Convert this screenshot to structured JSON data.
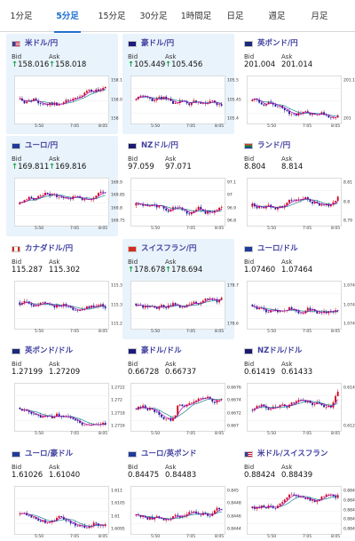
{
  "timeframe_tabs": [
    {
      "label": "1分足",
      "active": false
    },
    {
      "label": "5分足",
      "active": true
    },
    {
      "label": "15分足",
      "active": false
    },
    {
      "label": "30分足",
      "active": false
    },
    {
      "label": "1時間足",
      "active": false
    },
    {
      "label": "日足",
      "active": false
    },
    {
      "label": "週足",
      "active": false
    },
    {
      "label": "月足",
      "active": false
    }
  ],
  "colors": {
    "accent": "#1f6fd1",
    "title": "#3f3fa0",
    "up_arrow": "#1aa34a",
    "candle_up": "#d0021b",
    "candle_down": "#1a1a9a",
    "avg_line_fast": "#b000b0",
    "avg_line_slow": "#1a8a8a",
    "highlight_bg": "#e9f3fb"
  },
  "labels": {
    "bid": "Bid",
    "ask": "Ask"
  },
  "cards": [
    {
      "pair": "米ドル/円",
      "flag": "us-flag-icon",
      "bid": "158.016",
      "ask": "158.018",
      "arrow": "up",
      "highlight": true,
      "y_ticks": [
        "158.1",
        "158.05",
        "158"
      ],
      "x_ticks": [
        "5:50",
        "7:05",
        "8:05"
      ]
    },
    {
      "pair": "豪ドル/円",
      "flag": "au-flag-icon",
      "bid": "105.449",
      "ask": "105.456",
      "arrow": "up",
      "highlight": true,
      "y_ticks": [
        "105.5",
        "105.45",
        "105.4"
      ],
      "x_ticks": [
        "5:50",
        "7:05",
        "8:05"
      ]
    },
    {
      "pair": "英ポンド/円",
      "flag": "gb-flag-icon",
      "bid": "201.004",
      "ask": "201.014",
      "arrow": "none",
      "highlight": false,
      "y_ticks": [
        "201.1",
        "201"
      ],
      "x_ticks": [
        "5:50",
        "7:05",
        "8:05"
      ]
    },
    {
      "pair": "ユーロ/円",
      "flag": "eu-flag-icon",
      "bid": "169.811",
      "ask": "169.816",
      "arrow": "up",
      "highlight": true,
      "y_ticks": [
        "169.9",
        "169.85",
        "169.8",
        "169.75"
      ],
      "x_ticks": [
        "5:50",
        "7:05",
        "8:05"
      ]
    },
    {
      "pair": "NZドル/円",
      "flag": "nz-flag-icon",
      "bid": "97.059",
      "ask": "97.071",
      "arrow": "none",
      "highlight": false,
      "y_ticks": [
        "97.1",
        "97",
        "96.9",
        "96.8"
      ],
      "x_ticks": [
        "5:50",
        "7:05",
        "8:05"
      ]
    },
    {
      "pair": "ランド/円",
      "flag": "za-flag-icon",
      "bid": "8.804",
      "ask": "8.814",
      "arrow": "none",
      "highlight": false,
      "y_ticks": [
        "8.81",
        "8.8",
        "8.79"
      ],
      "x_ticks": [
        "5:50",
        "7:05",
        "8:05"
      ]
    },
    {
      "pair": "カナダドル/円",
      "flag": "ca-flag-icon",
      "bid": "115.287",
      "ask": "115.302",
      "arrow": "none",
      "highlight": false,
      "y_ticks": [
        "115.35",
        "115.3",
        "115.25"
      ],
      "x_ticks": [
        "5:50",
        "7:05",
        "8:05"
      ]
    },
    {
      "pair": "スイスフラン/円",
      "flag": "ch-flag-icon",
      "bid": "178.678",
      "ask": "178.694",
      "arrow": "up",
      "highlight": true,
      "y_ticks": [
        "178.7",
        "178.6"
      ],
      "x_ticks": [
        "5:50",
        "7:05",
        "8:05"
      ]
    },
    {
      "pair": "ユーロ/ドル",
      "flag": "eu-us-flag-icon",
      "bid": "1.07460",
      "ask": "1.07464",
      "arrow": "none",
      "highlight": false,
      "y_ticks": [
        "1.0748",
        "1.0746",
        "1.0744"
      ],
      "x_ticks": [
        "5:50",
        "7:05",
        "8:05"
      ]
    },
    {
      "pair": "英ポンド/ドル",
      "flag": "gb-us-flag-icon",
      "bid": "1.27199",
      "ask": "1.27209",
      "arrow": "none",
      "highlight": false,
      "y_ticks": [
        "1.2722",
        "1.272",
        "1.2718",
        "1.2716"
      ],
      "x_ticks": [
        "5:50",
        "7:05",
        "8:05"
      ]
    },
    {
      "pair": "豪ドル/ドル",
      "flag": "au-us-flag-icon",
      "bid": "0.66728",
      "ask": "0.66737",
      "arrow": "none",
      "highlight": false,
      "y_ticks": [
        "0.6676",
        "0.6674",
        "0.6672",
        "0.667"
      ],
      "x_ticks": [
        "5:50",
        "7:05",
        "8:05"
      ]
    },
    {
      "pair": "NZドル/ドル",
      "flag": "nz-us-flag-icon",
      "bid": "0.61419",
      "ask": "0.61433",
      "arrow": "none",
      "highlight": false,
      "y_ticks": [
        "0.614",
        "0.612"
      ],
      "x_ticks": [
        "5:50",
        "7:05",
        "8:05"
      ]
    },
    {
      "pair": "ユーロ/豪ドル",
      "flag": "eu-au-flag-icon",
      "bid": "1.61026",
      "ask": "1.61040",
      "arrow": "none",
      "highlight": false,
      "y_ticks": [
        "1.611",
        "1.6105",
        "1.61",
        "1.6095"
      ],
      "x_ticks": [
        "5:50",
        "7:05",
        "8:05"
      ]
    },
    {
      "pair": "ユーロ/英ポンド",
      "flag": "eu-gb-flag-icon",
      "bid": "0.84475",
      "ask": "0.84483",
      "arrow": "none",
      "highlight": false,
      "y_ticks": [
        "0.845",
        "0.8448",
        "0.8446",
        "0.8444"
      ],
      "x_ticks": [
        "5:50",
        "7:05",
        "8:05"
      ]
    },
    {
      "pair": "米ドル/スイスフラン",
      "flag": "us-ch-flag-icon",
      "bid": "0.88424",
      "ask": "0.88439",
      "arrow": "none",
      "highlight": false,
      "y_ticks": [
        "0.8848",
        "0.8846",
        "0.8844",
        "0.8842",
        "0.884"
      ],
      "x_ticks": [
        "5:50",
        "7:05",
        "8:05"
      ]
    }
  ]
}
